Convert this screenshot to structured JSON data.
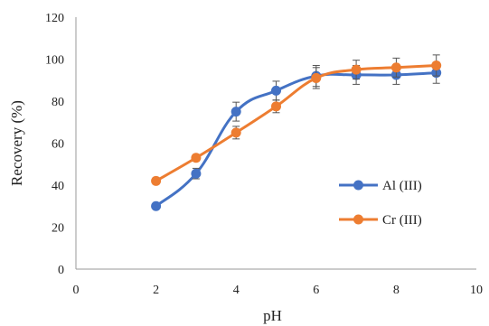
{
  "chart_data": {
    "type": "line",
    "title": "",
    "xlabel": "pH",
    "ylabel": "Recovery (%)",
    "xlim": [
      0,
      10
    ],
    "ylim": [
      0,
      120
    ],
    "xticks": [
      0,
      2,
      4,
      6,
      8,
      10
    ],
    "yticks": [
      0,
      20,
      40,
      60,
      80,
      100,
      120
    ],
    "grid": false,
    "legend_position": "right",
    "series": [
      {
        "name": "Al (III)",
        "color": "#4472C4",
        "x": [
          2,
          3,
          4,
          5,
          6,
          7,
          8,
          9
        ],
        "y": [
          30,
          45.5,
          75,
          85,
          92,
          92.5,
          92.5,
          93.5
        ],
        "error": [
          1,
          2.5,
          4.5,
          4.5,
          5,
          4.5,
          4.5,
          5
        ]
      },
      {
        "name": "Cr (III)",
        "color": "#ED7D31",
        "x": [
          2,
          3,
          4,
          5,
          6,
          7,
          8,
          9
        ],
        "y": [
          42,
          53,
          65,
          77.5,
          91,
          95,
          96,
          97
        ],
        "error": [
          1.5,
          1.5,
          3,
          3,
          5,
          4.5,
          4.5,
          5
        ]
      }
    ]
  }
}
